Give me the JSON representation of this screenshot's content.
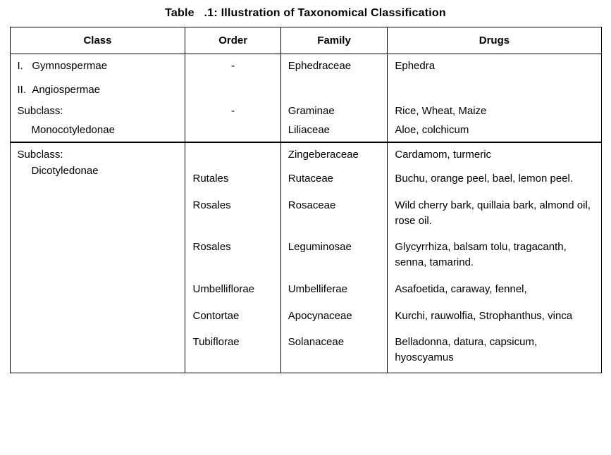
{
  "table": {
    "title": "Table   .1: Illustration of Taxonomical Classification",
    "title_fontsize": 16,
    "cell_fontsize": 15,
    "border_color": "#000000",
    "background_color": "#ffffff",
    "columns": {
      "class": "Class",
      "order": "Order",
      "family": "Family",
      "drugs": "Drugs"
    },
    "section1": {
      "class_lines": [
        "I.   Gymnospermae",
        "II.  Angiospermae",
        "Subclass:",
        "Monocotyledonae"
      ],
      "order_lines": [
        "-",
        "",
        "-",
        ""
      ],
      "family_lines": [
        "Ephedraceae",
        "",
        "Graminae",
        "Liliaceae"
      ],
      "drugs_lines": [
        "Ephedra",
        "",
        "Rice, Wheat, Maize",
        "Aloe, colchicum"
      ]
    },
    "section2": {
      "class_heading": "Subclass:",
      "class_sub": "Dicotyledonae",
      "rows": [
        {
          "order": "",
          "family": "Zingeberaceae",
          "drugs": "Cardamom, turmeric"
        },
        {
          "order": "Rutales",
          "family": "Rutaceae",
          "drugs": "Buchu, orange peel, bael, lemon peel."
        },
        {
          "order": "Rosales",
          "family": "Rosaceae",
          "drugs": "Wild cherry bark, quillaia bark, almond oil, rose oil."
        },
        {
          "order": "Rosales",
          "family": "Leguminosae",
          "drugs": "Glycyrrhiza, balsam tolu, tragacanth, senna, tamarind."
        },
        {
          "order": "Umbelliflorae",
          "family": "Umbelliferae",
          "drugs": "Asafoetida, caraway, fennel,"
        },
        {
          "order": "Contortae",
          "family": "Apocynaceae",
          "drugs": "Kurchi, rauwolfia, Strophanthus, vinca"
        },
        {
          "order": "Tubiflorae",
          "family": "Solanaceae",
          "drugs": "Belladonna, datura, capsicum, hyoscyamus"
        }
      ]
    }
  }
}
